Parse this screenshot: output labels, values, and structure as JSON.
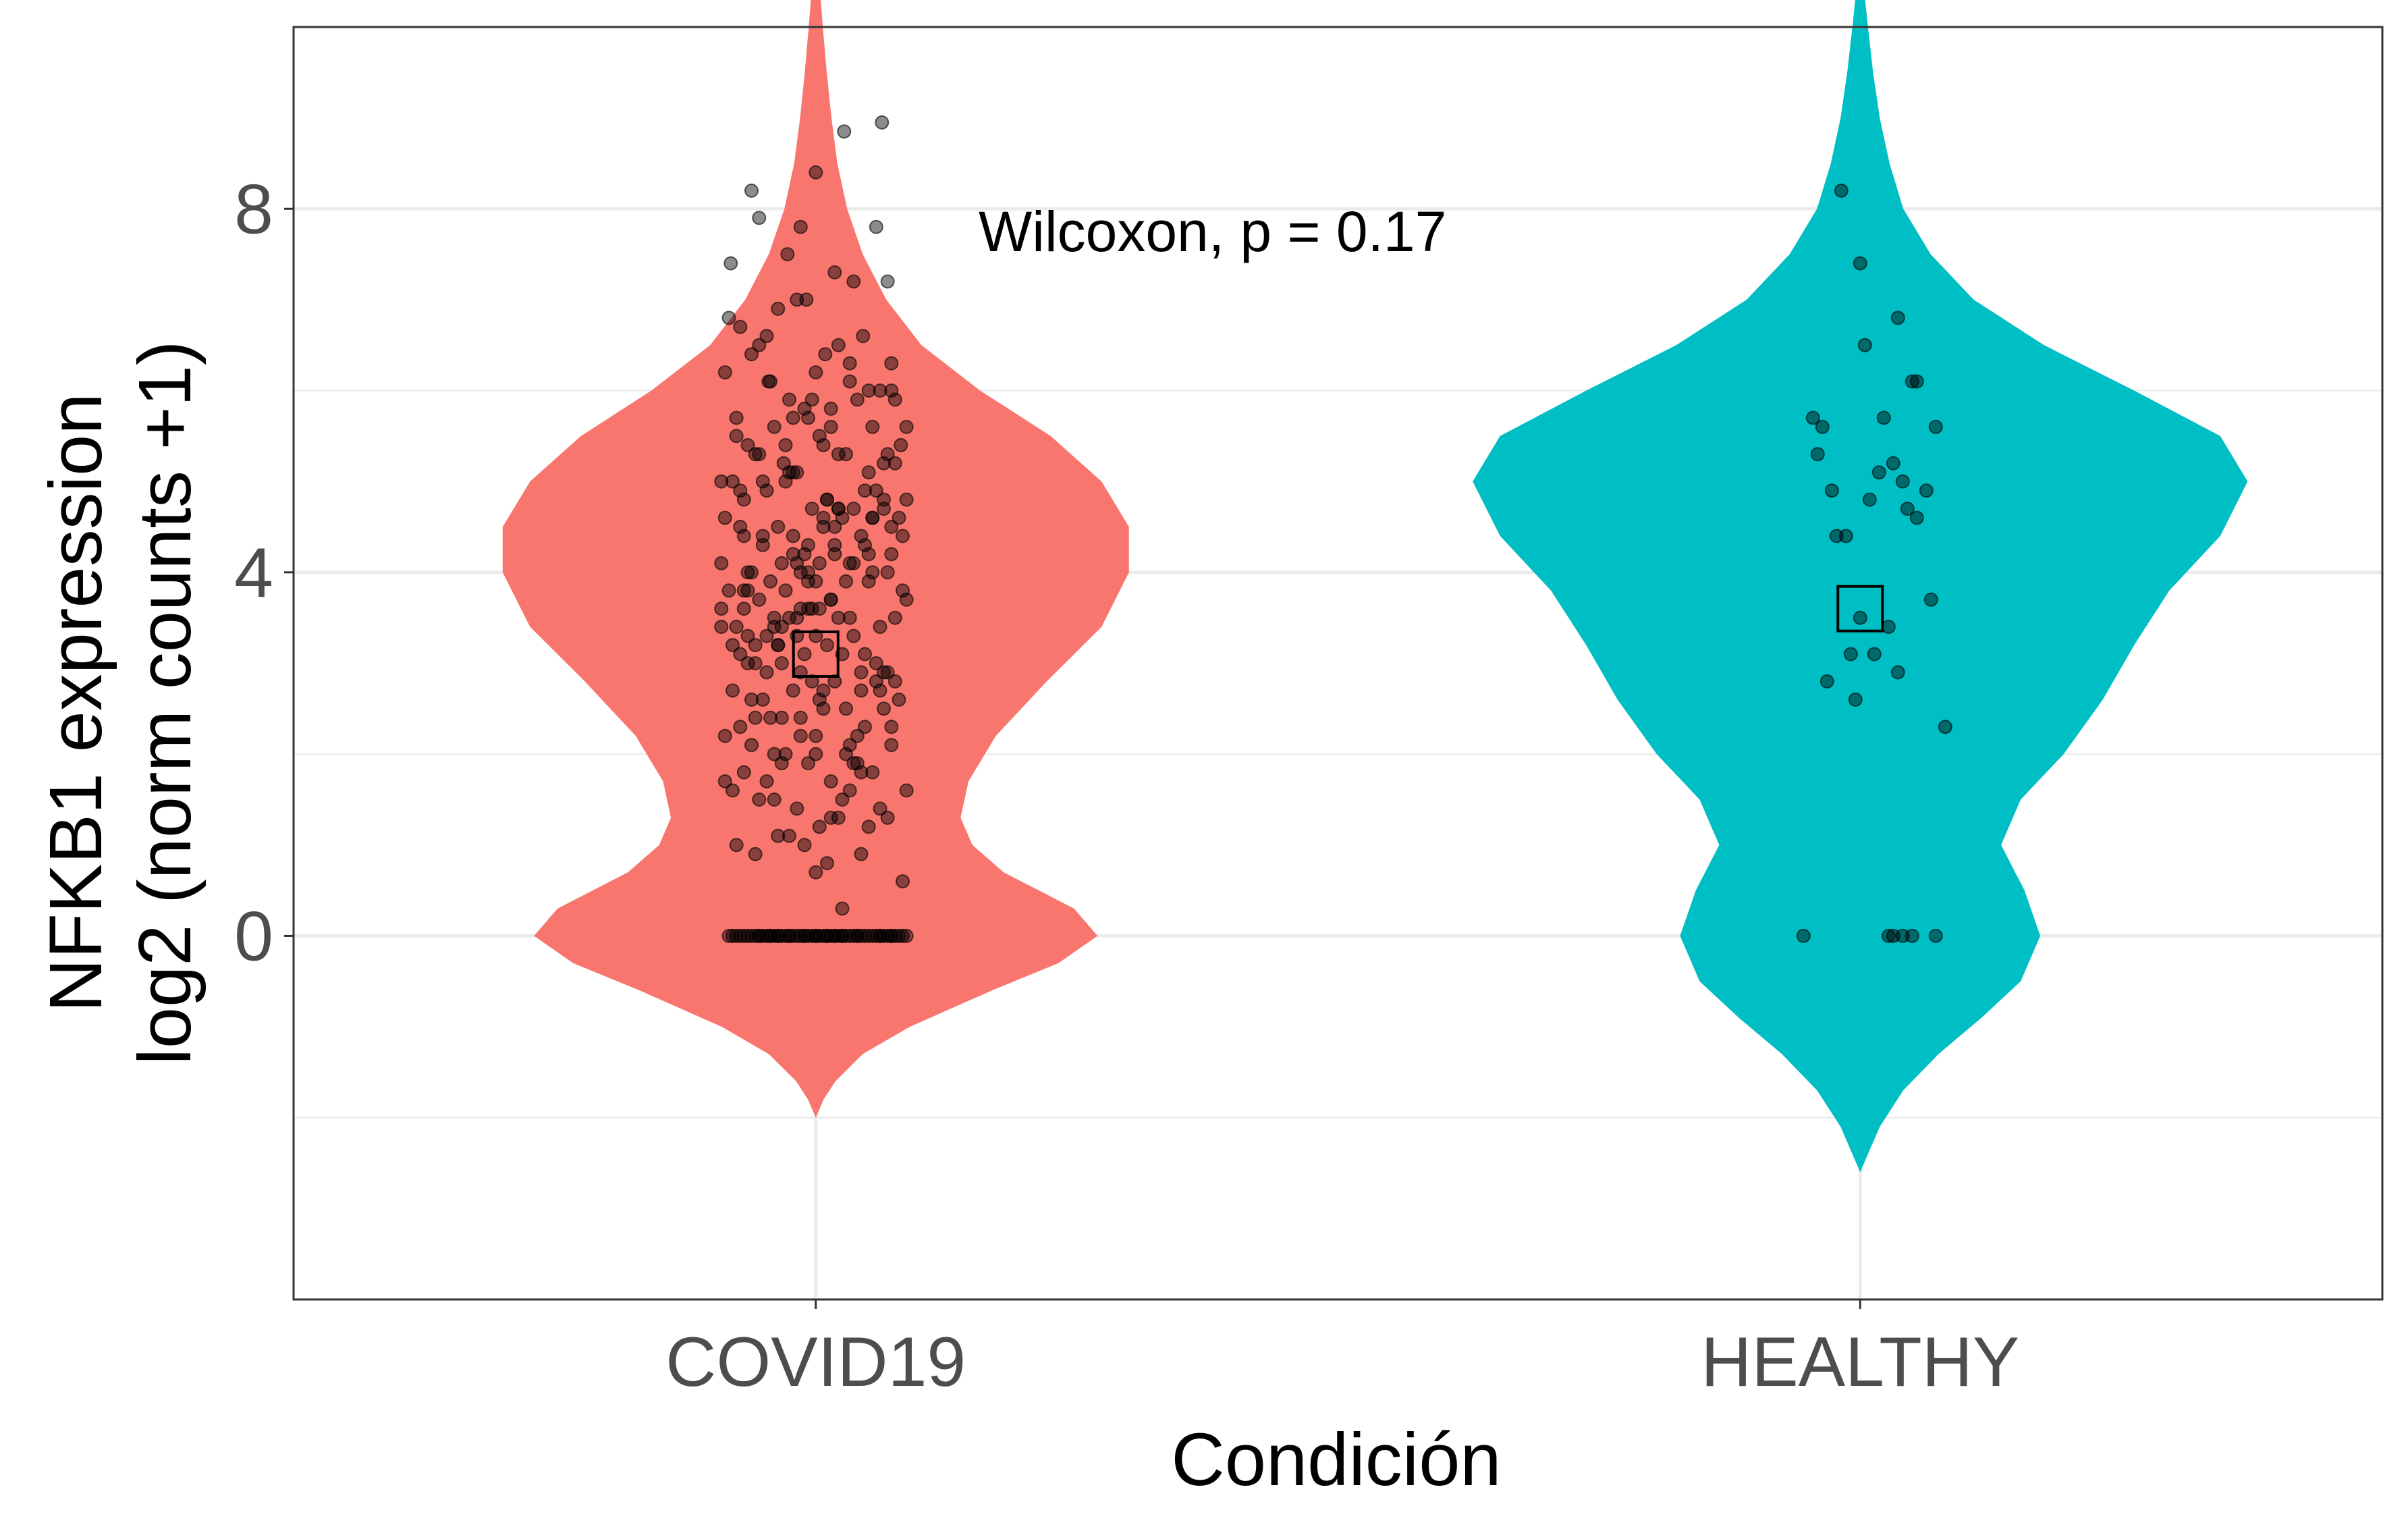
{
  "chart_data": {
    "type": "violin",
    "title": "",
    "xlabel": "Condición",
    "ylabel_lines": [
      "NFKB1 expression",
      "log2 (norm counts +1)"
    ],
    "ylim": [
      -4,
      10
    ],
    "yticks": [
      0,
      4,
      8
    ],
    "grid": true,
    "legend": "none",
    "annotation": "Wilcoxon, p = 0.17",
    "categories": [
      "COVID19",
      "HEALTHY"
    ],
    "colors": {
      "COVID19": "#F8766D",
      "HEALTHY": "#00BFC4"
    },
    "groups": [
      {
        "name": "COVID19",
        "range": [
          -2.0,
          10.9
        ],
        "mean": 3.1,
        "density": [
          [
            -2.0,
            0.0
          ],
          [
            -1.8,
            0.02
          ],
          [
            -1.6,
            0.05
          ],
          [
            -1.3,
            0.12
          ],
          [
            -1.0,
            0.24
          ],
          [
            -0.6,
            0.45
          ],
          [
            -0.3,
            0.62
          ],
          [
            0.0,
            0.72
          ],
          [
            0.3,
            0.66
          ],
          [
            0.7,
            0.48
          ],
          [
            1.0,
            0.4
          ],
          [
            1.3,
            0.37
          ],
          [
            1.7,
            0.39
          ],
          [
            2.2,
            0.46
          ],
          [
            2.8,
            0.59
          ],
          [
            3.4,
            0.73
          ],
          [
            4.0,
            0.8
          ],
          [
            4.5,
            0.8
          ],
          [
            5.0,
            0.73
          ],
          [
            5.5,
            0.6
          ],
          [
            6.0,
            0.42
          ],
          [
            6.5,
            0.27
          ],
          [
            7.0,
            0.18
          ],
          [
            7.5,
            0.12
          ],
          [
            8.0,
            0.08
          ],
          [
            8.5,
            0.055
          ],
          [
            9.0,
            0.04
          ],
          [
            9.5,
            0.028
          ],
          [
            10.0,
            0.018
          ],
          [
            10.5,
            0.009
          ],
          [
            10.9,
            0.0
          ]
        ],
        "points_x": [
          0.16,
          0.5,
          0.85,
          0.2,
          0.65,
          0.42,
          0.05,
          0.82,
          0.35,
          0.7,
          0.4,
          0.6,
          0.1,
          0.88,
          0.3,
          0.75,
          0.45,
          0.55,
          0.2,
          0.9,
          0.25,
          0.62,
          0.36,
          0.78,
          0.08,
          0.5,
          0.68,
          0.28,
          0.84,
          0.14,
          0.46,
          0.72,
          0.18,
          0.58,
          0.95,
          0.33,
          0.52,
          0.06,
          0.8,
          0.4,
          0.24,
          0.66,
          0.12,
          0.92,
          0.48,
          0.3,
          0.76,
          0.56,
          0.02,
          0.86,
          0.38,
          0.64,
          0.22,
          0.98,
          0.44,
          0.7,
          0.1,
          0.54,
          0.32,
          0.8,
          0.16,
          0.6,
          0.42,
          0.9,
          0.26,
          0.74,
          0.04,
          0.5,
          0.34,
          0.68,
          0.2,
          0.88,
          0.46,
          0.58,
          0.12,
          0.78,
          0.36,
          0.96,
          0.28,
          0.62,
          0.08,
          0.52,
          0.4,
          0.84,
          0.18,
          0.7,
          0.3,
          0.92,
          0.44,
          0.64,
          0.14,
          0.56,
          0.24,
          0.82,
          0.48,
          0.74,
          0.06,
          0.6,
          0.38,
          0.86,
          0.22,
          0.66,
          0.32,
          0.94,
          0.1,
          0.54,
          0.42,
          0.76,
          0.26,
          0.9,
          0.5,
          0.02,
          0.72,
          0.34,
          0.8,
          0.16,
          0.58,
          0.46,
          0.98,
          0.28,
          0.68,
          0.12,
          0.84,
          0.4,
          0.62,
          0.2,
          0.52,
          0.36,
          0.88,
          0.08,
          0.74,
          0.44,
          0.56,
          0.3,
          0.96,
          0.18,
          0.64,
          0.5,
          0.78,
          0.24,
          0.86,
          0.14,
          0.6,
          0.38,
          0.92,
          0.04,
          0.7,
          0.48,
          0.82,
          0.32,
          0.54,
          0.22,
          0.66,
          0.42,
          0.9,
          0.1,
          0.76,
          0.28,
          0.58,
          0.46,
          0.98,
          0.16,
          0.68,
          0.34,
          0.8,
          0.06,
          0.62,
          0.4,
          0.88,
          0.2,
          0.52,
          0.3,
          0.72,
          0.44,
          0.94,
          0.12,
          0.84,
          0.26,
          0.56,
          0.5,
          0.64,
          0.36,
          0.78,
          0.18,
          0.9,
          0.08,
          0.6,
          0.42,
          0.74,
          0.24,
          0.86,
          0.14,
          0.54,
          0.38,
          0.96,
          0.32,
          0.68,
          0.02,
          0.82,
          0.46,
          0.58,
          0.22,
          0.76,
          0.1,
          0.92,
          0.48,
          0.62,
          0.28,
          0.7,
          0.16,
          0.88,
          0.4,
          0.52,
          0.34,
          0.8,
          0.06,
          0.66,
          0.44,
          0.98,
          0.2,
          0.56,
          0.3,
          0.84,
          0.12,
          0.72,
          0.5,
          0.6,
          0.26,
          0.9,
          0.36,
          0.64,
          0.18,
          0.78,
          0.42,
          0.54,
          0.08,
          0.94,
          0.32,
          0.68,
          0.24,
          0.86,
          0.46,
          0.58,
          0.14,
          0.74,
          0.38,
          0.82,
          0.04,
          0.62,
          0.28,
          0.9,
          0.5,
          0.7,
          0.22,
          0.56,
          0.4,
          0.96,
          0.1,
          0.76,
          0.34,
          0.64,
          0.16,
          0.88,
          0.44,
          0.52,
          0.3,
          0.8,
          0.2,
          0.66,
          0.06,
          0.92,
          0.48,
          0.6,
          0.26,
          0.72,
          0.36,
          0.84,
          0.12,
          0.58,
          0.42,
          0.78,
          0.24,
          0.54,
          0.18,
          0.98,
          0.46,
          0.68,
          0.02,
          0.86,
          0.32,
          0.62,
          0.38,
          0.74,
          0.14,
          0.9,
          0.5
        ],
        "points_y": [
          8.2,
          8.4,
          8.95,
          7.9,
          8.85,
          7.8,
          7.4,
          7.8,
          7.5,
          7.2,
          7.0,
          7.3,
          6.7,
          7.2,
          6.9,
          6.6,
          7.0,
          6.4,
          6.5,
          6.3,
          6.1,
          6.5,
          5.9,
          6.0,
          5.7,
          6.2,
          6.1,
          5.6,
          6.0,
          5.4,
          5.7,
          5.9,
          5.3,
          5.8,
          5.4,
          5.2,
          5.5,
          5.0,
          5.6,
          5.1,
          4.9,
          5.3,
          4.8,
          5.2,
          4.7,
          4.5,
          4.9,
          4.8,
          4.6,
          4.7,
          4.4,
          4.6,
          4.3,
          4.8,
          4.2,
          4.7,
          4.5,
          4.5,
          4.1,
          4.6,
          4.0,
          4.3,
          4.0,
          4.2,
          3.9,
          4.4,
          3.8,
          3.9,
          3.8,
          4.1,
          3.7,
          4.0,
          3.6,
          3.7,
          3.6,
          3.9,
          3.5,
          3.8,
          3.4,
          3.5,
          3.4,
          3.6,
          3.3,
          3.4,
          3.2,
          3.3,
          3.2,
          3.5,
          3.1,
          3.1,
          3.0,
          3.2,
          2.9,
          3.0,
          2.8,
          2.9,
          2.7,
          2.8,
          2.7,
          2.9,
          2.6,
          2.5,
          2.4,
          2.6,
          2.3,
          2.7,
          2.2,
          2.3,
          2.4,
          2.1,
          2.0,
          2.2,
          1.9,
          2.0,
          1.8,
          2.1,
          1.7,
          1.9,
          1.6,
          1.5,
          1.6,
          1.8,
          1.4,
          1.4,
          1.3,
          1.5,
          1.2,
          1.1,
          1.3,
          1.0,
          0.9,
          1.0,
          0.8,
          1.1,
          0.6,
          0.9,
          0.3,
          0.7,
          1.2,
          1.7,
          2.5,
          3.3,
          4.2,
          5.1,
          5.9,
          6.8,
          4.1,
          3.6,
          2.8,
          1.9,
          5.4,
          4.4,
          3.9,
          2.4,
          6.0,
          4.9,
          3.1,
          2.0,
          5.6,
          4.3,
          3.7,
          2.6,
          6.3,
          5.0,
          4.0,
          1.6,
          4.7,
          3.5,
          2.9,
          5.3,
          4.1,
          3.2,
          2.2,
          5.8,
          4.6,
          3.8,
          2.7,
          6.1,
          4.8,
          3.3,
          1.5,
          5.1,
          4.2,
          3.0,
          2.3,
          5.5,
          4.5,
          3.6,
          1.8,
          6.6,
          5.2,
          4.0,
          2.5,
          5.7,
          4.4,
          3.4,
          2.1,
          6.2,
          4.9,
          3.9,
          1.3,
          5.0,
          4.3,
          3.1,
          2.8,
          5.9,
          4.7,
          3.5,
          1.9,
          6.4,
          5.3,
          4.1,
          2.6,
          5.4,
          4.6,
          3.2,
          2.0,
          0.0,
          0.0,
          0.0,
          0.0,
          0.0,
          0.0,
          0.0,
          0.0,
          0.0,
          0.0,
          0.0,
          0.0,
          0.0,
          0.0,
          0.0,
          0.0,
          0.0,
          0.0,
          0.0,
          0.0,
          0.0,
          0.0,
          0.0,
          0.0,
          0.0,
          0.0,
          0.0,
          0.0,
          0.0,
          0.0,
          0.0,
          0.0,
          0.0,
          0.0,
          0.0,
          0.0,
          0.0,
          0.0,
          0.0,
          0.0,
          0.0,
          0.0,
          0.0,
          0.0,
          0.0,
          0.0,
          0.0,
          0.0,
          0.0,
          0.0,
          0.0,
          0.0,
          0.0,
          0.0,
          0.0,
          0.0,
          0.0,
          0.0,
          0.0,
          0.0,
          4.4,
          3.7,
          2.9,
          5.1,
          3.3,
          4.6,
          2.4,
          5.6,
          4.0,
          3.5,
          1.7,
          4.8,
          3.0,
          5.3,
          4.2,
          2.7,
          3.8,
          4.5,
          2.2,
          5.0,
          3.6,
          4.1,
          3.4
        ]
      },
      {
        "name": "HEALTHY",
        "range": [
          -2.6,
          10.8
        ],
        "mean": 3.6,
        "density": [
          [
            -2.6,
            0.0
          ],
          [
            -2.4,
            0.02
          ],
          [
            -2.1,
            0.05
          ],
          [
            -1.7,
            0.11
          ],
          [
            -1.3,
            0.2
          ],
          [
            -0.9,
            0.31
          ],
          [
            -0.5,
            0.41
          ],
          [
            0.0,
            0.46
          ],
          [
            0.5,
            0.42
          ],
          [
            1.0,
            0.36
          ],
          [
            1.5,
            0.41
          ],
          [
            2.0,
            0.52
          ],
          [
            2.6,
            0.62
          ],
          [
            3.2,
            0.7
          ],
          [
            3.8,
            0.79
          ],
          [
            4.4,
            0.92
          ],
          [
            5.0,
            0.99
          ],
          [
            5.5,
            0.92
          ],
          [
            6.0,
            0.7
          ],
          [
            6.5,
            0.47
          ],
          [
            7.0,
            0.29
          ],
          [
            7.5,
            0.18
          ],
          [
            8.0,
            0.11
          ],
          [
            8.5,
            0.075
          ],
          [
            9.0,
            0.05
          ],
          [
            9.5,
            0.033
          ],
          [
            10.0,
            0.02
          ],
          [
            10.4,
            0.01
          ],
          [
            10.8,
            0.0
          ]
        ],
        "points_x": [
          -0.2,
          0.0,
          0.05,
          0.4,
          0.6,
          -0.5,
          -0.4,
          0.25,
          0.55,
          0.35,
          0.8,
          -0.45,
          -0.3,
          0.2,
          0.1,
          0.45,
          0.7,
          -0.15,
          0.6,
          0.5,
          -0.25,
          0.0,
          0.3,
          -0.1,
          0.9,
          -0.35,
          0.15,
          -0.05,
          0.4,
          0.75,
          -0.6,
          0.3,
          0.35,
          0.45,
          0.55,
          0.8
        ],
        "points_y": [
          8.2,
          7.4,
          6.5,
          6.8,
          6.1,
          5.7,
          5.6,
          5.7,
          6.1,
          5.2,
          5.6,
          5.3,
          4.9,
          5.1,
          4.8,
          5.0,
          4.9,
          4.4,
          4.6,
          4.7,
          4.4,
          3.5,
          3.4,
          3.1,
          2.3,
          2.8,
          3.1,
          2.6,
          2.9,
          3.7,
          0.0,
          0.0,
          0.0,
          0.0,
          0.0,
          0.0
        ]
      }
    ]
  }
}
